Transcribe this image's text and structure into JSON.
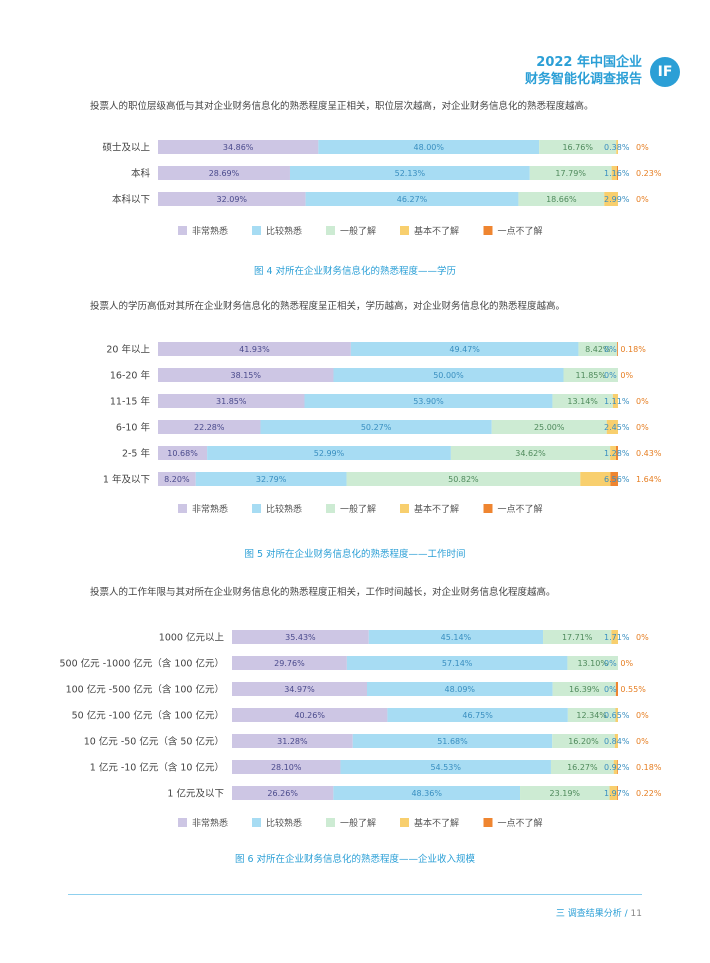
{
  "header": {
    "line1": "2022 年中国企业",
    "line2": "财务智能化调查报告",
    "logo": "IF"
  },
  "paragraphs": [
    "投票人的职位层级高低与其对企业财务信息化的熟悉程度呈正相关，职位层次越高，对企业财务信息化的熟悉程度越高。",
    "投票人的学历高低对其所在企业财务信息化的熟悉程度呈正相关，学历越高，对企业财务信息化的熟悉程度越高。",
    "投票人的工作年限与其对所在企业财务信息化的熟悉程度正相关，工作时间越长，对企业财务信息化程度越高。"
  ],
  "colors": {
    "series": [
      "#cdc6e4",
      "#a7dcf3",
      "#cdebd3",
      "#f8cf6e",
      "#ef8530"
    ],
    "dark_label": "#4a4a8c",
    "light_label": "#3a8fc0",
    "green_label": "#4f8a5c",
    "orange_label": "#e67e22"
  },
  "chart_data": [
    {
      "type": "bar",
      "orientation": "horizontal-stacked-percent",
      "caption": "图 4 对所在企业财务信息化的熟悉程度——学历",
      "categories": [
        "硕士及以上",
        "本科",
        "本科以下"
      ],
      "series": [
        {
          "name": "非常熟悉",
          "values": [
            34.86,
            28.69,
            32.09
          ],
          "labels": [
            "34.86%",
            "28.69%",
            "32.09%"
          ]
        },
        {
          "name": "比较熟悉",
          "values": [
            48.0,
            52.13,
            46.27
          ],
          "labels": [
            "48.00%",
            "52.13%",
            "46.27%"
          ]
        },
        {
          "name": "一般了解",
          "values": [
            16.76,
            17.79,
            18.66
          ],
          "labels": [
            "16.76%",
            "17.79%",
            "18.66%"
          ]
        },
        {
          "name": "基本不了解",
          "values": [
            0.38,
            1.16,
            2.99
          ],
          "labels": [
            "0.38%",
            "1.16%",
            "2.99%"
          ]
        },
        {
          "name": "一点不了解",
          "values": [
            0,
            0.23,
            0
          ],
          "labels": [
            "0%",
            "0.23%",
            "0%"
          ]
        }
      ]
    },
    {
      "type": "bar",
      "orientation": "horizontal-stacked-percent",
      "caption": "图 5 对所在企业财务信息化的熟悉程度——工作时间",
      "categories": [
        "20 年以上",
        "16-20 年",
        "11-15 年",
        "6-10 年",
        "2-5 年",
        "1 年及以下"
      ],
      "series": [
        {
          "name": "非常熟悉",
          "values": [
            41.93,
            38.15,
            31.85,
            22.28,
            10.68,
            8.2
          ],
          "labels": [
            "41.93%",
            "38.15%",
            "31.85%",
            "22.28%",
            "10.68%",
            "8.20%"
          ]
        },
        {
          "name": "比较熟悉",
          "values": [
            49.47,
            50.0,
            53.9,
            50.27,
            52.99,
            32.79
          ],
          "labels": [
            "49.47%",
            "50.00%",
            "53.90%",
            "50.27%",
            "52.99%",
            "32.79%"
          ]
        },
        {
          "name": "一般了解",
          "values": [
            8.42,
            11.85,
            13.14,
            25.0,
            34.62,
            50.82
          ],
          "labels": [
            "8.42%",
            "11.85%",
            "13.14%",
            "25.00%",
            "34.62%",
            "50.82%"
          ]
        },
        {
          "name": "基本不了解",
          "values": [
            0,
            0,
            1.11,
            2.45,
            1.28,
            6.56
          ],
          "labels": [
            "0%",
            "0%",
            "1.11%",
            "2.45%",
            "1.28%",
            "6.56%"
          ]
        },
        {
          "name": "一点不了解",
          "values": [
            0.18,
            0,
            0,
            0,
            0.43,
            1.64
          ],
          "labels": [
            "0.18%",
            "0%",
            "0%",
            "0%",
            "0.43%",
            "1.64%"
          ]
        }
      ]
    },
    {
      "type": "bar",
      "orientation": "horizontal-stacked-percent",
      "caption": "图 6 对所在企业财务信息化的熟悉程度——企业收入规模",
      "categories": [
        "1000 亿元以上",
        "500 亿元 -1000 亿元（含 100 亿元）",
        "100 亿元 -500 亿元（含 100 亿元）",
        "50 亿元 -100 亿元（含 100 亿元）",
        "10 亿元 -50 亿元（含 50 亿元）",
        "1 亿元 -10 亿元（含 10 亿元）",
        "1 亿元及以下"
      ],
      "series": [
        {
          "name": "非常熟悉",
          "values": [
            35.43,
            29.76,
            34.97,
            40.26,
            31.28,
            28.1,
            26.26
          ],
          "labels": [
            "35.43%",
            "29.76%",
            "34.97%",
            "40.26%",
            "31.28%",
            "28.10%",
            "26.26%"
          ]
        },
        {
          "name": "比较熟悉",
          "values": [
            45.14,
            57.14,
            48.09,
            46.75,
            51.68,
            54.53,
            48.36
          ],
          "labels": [
            "45.14%",
            "57.14%",
            "48.09%",
            "46.75%",
            "51.68%",
            "54.53%",
            "48.36%"
          ]
        },
        {
          "name": "一般了解",
          "values": [
            17.71,
            13.1,
            16.39,
            12.34,
            16.2,
            16.27,
            23.19
          ],
          "labels": [
            "17.71%",
            "13.10%",
            "16.39%",
            "12.34%",
            "16.20%",
            "16.27%",
            "23.19%"
          ]
        },
        {
          "name": "基本不了解",
          "values": [
            1.71,
            0,
            0,
            0.65,
            0.84,
            0.92,
            1.97
          ],
          "labels": [
            "1.71%",
            "0%",
            "0%",
            "0.65%",
            "0.84%",
            "0.92%",
            "1.97%"
          ]
        },
        {
          "name": "一点不了解",
          "values": [
            0,
            0,
            0.55,
            0,
            0,
            0.18,
            0.22
          ],
          "labels": [
            "0%",
            "0%",
            "0.55%",
            "0%",
            "0%",
            "0.18%",
            "0.22%"
          ]
        }
      ]
    }
  ],
  "footer": {
    "section": "三  调查结果分析",
    "sep": "/",
    "page": "11"
  }
}
